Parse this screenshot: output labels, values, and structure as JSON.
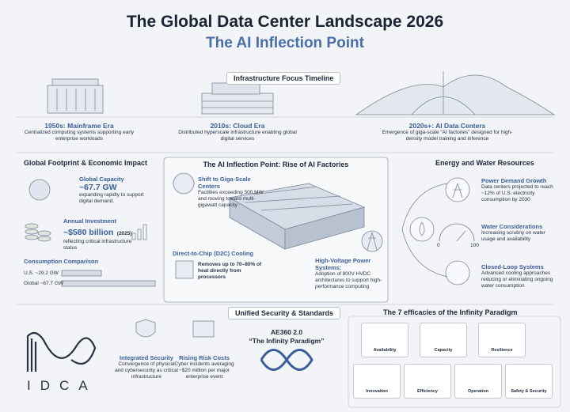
{
  "header": {
    "title": "The Global Data Center Landscape 2026",
    "subtitle": "The AI Inflection Point"
  },
  "timeline": {
    "title": "Infrastructure Focus Timeline",
    "eras": [
      {
        "title": "1950s: Mainframe Era",
        "description": "Centralized computing systems supporting early enterprise workloads"
      },
      {
        "title": "2010s: Cloud Era",
        "description": "Distributed hyperscale infrastructure enabling global digital services"
      },
      {
        "title": "2020s+: AI Data Centers",
        "description": "Emergence of giga-scale \"AI factories\" designed for high-density model training and inference"
      }
    ]
  },
  "footprint": {
    "title": "Global Footprint & Economic Impact",
    "capacity": {
      "title": "Global Capacity",
      "value": "~67.7 GW",
      "description": "expanding rapidly to support digital demand."
    },
    "investment": {
      "title": "Annual Investment",
      "value": "~$580 billion",
      "year": "(2025)",
      "description": "reflecting critical infrastructure status"
    },
    "consumption": {
      "title": "Consumption Comparison",
      "rows": [
        "U.S. ~29.2 GW",
        "Global ~67.7 GW"
      ]
    }
  },
  "ai_factories": {
    "title": "The AI Inflection Point: Rise of AI Factories",
    "callouts": [
      {
        "title": "Shift to Giga-Scale Centers",
        "description": "Facilities exceeding 500 MW and moving toward multi-gigawatt capacity"
      },
      {
        "title": "Direct-to-Chip (D2C) Cooling",
        "description": "Removes up to 70–80% of heat directly from processors"
      },
      {
        "title": "High-Voltage Power Systems:",
        "description": "Adoption of 800V HVDC architectures to support high-performance computing"
      }
    ]
  },
  "energy": {
    "title": "Energy and Water Resources",
    "items": [
      {
        "title": "Power Demand Growth",
        "description": "Data centers projected to reach ~12% of U.S. electricity consumption by 2030"
      },
      {
        "title": "Water Considerations",
        "description": "Increasing scrutiny on water usage and availability"
      },
      {
        "title": "Closed-Loop Systems",
        "description": "Advanced cooling approaches reducing or eliminating ongoing water consumption"
      }
    ],
    "gauge": [
      "0",
      "100"
    ]
  },
  "security": {
    "title": "Unified Security & Standards",
    "logo": "IDCA",
    "items": [
      {
        "title": "Integrated Security",
        "description": "Convergence of physical and cybersecurity as critical infrastructure"
      },
      {
        "title": "Rising Risk Costs",
        "description": "Cyber incidents averaging ~$20 million per major enterprise event"
      }
    ],
    "standard": {
      "title": "AE360 2.0",
      "subtitle": "“The Infinity Paradigm”"
    }
  },
  "efficacies": {
    "title": "The 7 efficacies of the Infinity Paradigm",
    "items": [
      "Availability",
      "Capacity",
      "Resilience",
      "Innovation",
      "Efficiency",
      "Operation",
      "Safety & Security"
    ]
  }
}
